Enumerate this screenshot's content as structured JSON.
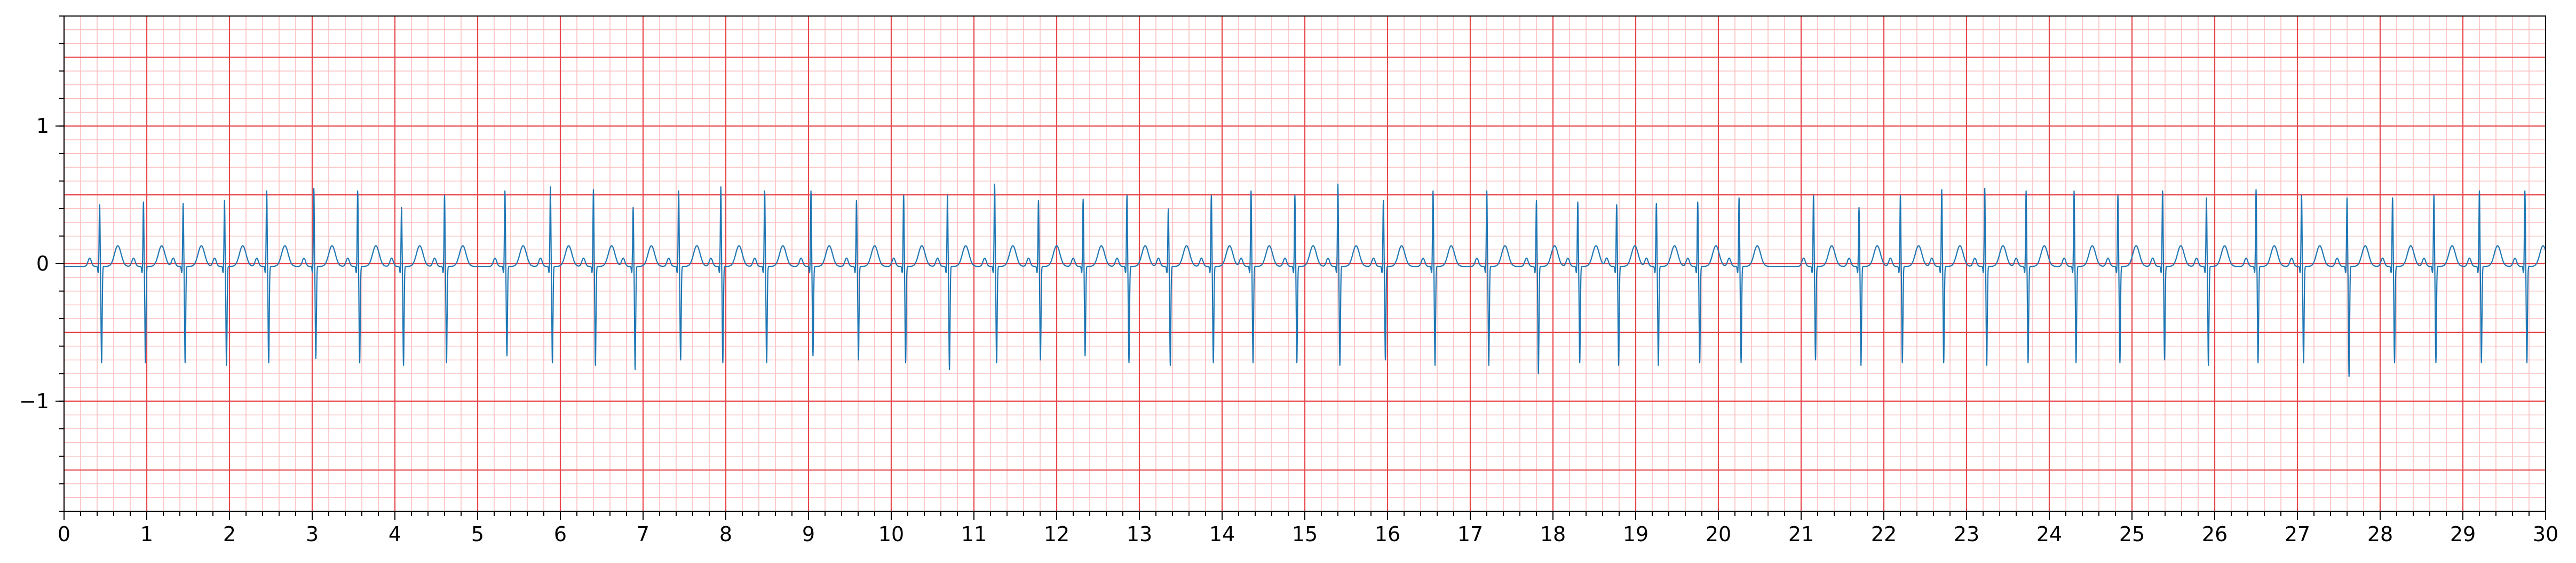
{
  "chart_data": {
    "type": "line",
    "title": "",
    "xlabel": "",
    "ylabel": "",
    "xlim": [
      0,
      30
    ],
    "ylim": [
      -1.8,
      1.8
    ],
    "x_ticks": [
      0,
      1,
      2,
      3,
      4,
      5,
      6,
      7,
      8,
      9,
      10,
      11,
      12,
      13,
      14,
      15,
      16,
      17,
      18,
      19,
      20,
      21,
      22,
      23,
      24,
      25,
      26,
      27,
      28,
      29,
      30
    ],
    "x_tick_labels": [
      "0",
      "1",
      "2",
      "3",
      "4",
      "5",
      "6",
      "7",
      "8",
      "9",
      "10",
      "11",
      "12",
      "13",
      "14",
      "15",
      "16",
      "17",
      "18",
      "19",
      "20",
      "21",
      "22",
      "23",
      "24",
      "25",
      "26",
      "27",
      "28",
      "29",
      "30"
    ],
    "y_ticks": [
      -1,
      0,
      1
    ],
    "y_tick_labels": [
      "−1",
      "0",
      "1"
    ],
    "grid": {
      "major_x_step": 1,
      "major_y_step": 0.5,
      "minor_x_step": 0.2,
      "minor_y_step": 0.1,
      "major_color": "#e8484d",
      "minor_color": "#fbbcbc"
    },
    "series": [
      {
        "color": "#1f77b4",
        "beat_times": [
          0.43,
          0.96,
          1.44,
          1.94,
          2.45,
          3.02,
          3.55,
          4.08,
          4.6,
          5.33,
          5.88,
          6.4,
          6.88,
          7.43,
          7.94,
          8.47,
          9.03,
          9.58,
          10.15,
          10.68,
          11.25,
          11.78,
          12.32,
          12.85,
          13.35,
          13.87,
          14.35,
          14.88,
          15.4,
          15.95,
          16.55,
          17.2,
          17.8,
          18.3,
          18.77,
          19.25,
          19.75,
          20.25,
          21.15,
          21.7,
          22.2,
          22.7,
          23.22,
          23.72,
          24.3,
          24.83,
          25.37,
          25.9,
          26.5,
          27.05,
          27.6,
          28.15,
          28.65,
          29.2,
          29.75
        ],
        "r_amplitudes": [
          0.45,
          0.47,
          0.46,
          0.48,
          0.55,
          0.57,
          0.55,
          0.43,
          0.52,
          0.55,
          0.58,
          0.56,
          0.43,
          0.55,
          0.58,
          0.55,
          0.55,
          0.48,
          0.52,
          0.52,
          0.6,
          0.48,
          0.49,
          0.52,
          0.42,
          0.52,
          0.55,
          0.52,
          0.6,
          0.48,
          0.55,
          0.55,
          0.48,
          0.47,
          0.45,
          0.46,
          0.47,
          0.5,
          0.52,
          0.43,
          0.52,
          0.56,
          0.57,
          0.55,
          0.55,
          0.52,
          0.55,
          0.5,
          0.56,
          0.52,
          0.5,
          0.5,
          0.52,
          0.55,
          0.55
        ],
        "s_amplitudes": [
          -0.7,
          -0.7,
          -0.7,
          -0.72,
          -0.7,
          -0.67,
          -0.7,
          -0.72,
          -0.7,
          -0.65,
          -0.7,
          -0.72,
          -0.75,
          -0.68,
          -0.7,
          -0.7,
          -0.65,
          -0.68,
          -0.7,
          -0.75,
          -0.7,
          -0.68,
          -0.65,
          -0.7,
          -0.72,
          -0.7,
          -0.7,
          -0.7,
          -0.72,
          -0.68,
          -0.72,
          -0.72,
          -0.78,
          -0.7,
          -0.72,
          -0.72,
          -0.7,
          -0.7,
          -0.68,
          -0.72,
          -0.7,
          -0.7,
          -0.72,
          -0.7,
          -0.7,
          -0.7,
          -0.68,
          -0.72,
          -0.7,
          -0.7,
          -0.8,
          -0.7,
          -0.7,
          -0.7,
          -0.7
        ],
        "t_amplitude": 0.15,
        "baseline": -0.02
      }
    ]
  }
}
